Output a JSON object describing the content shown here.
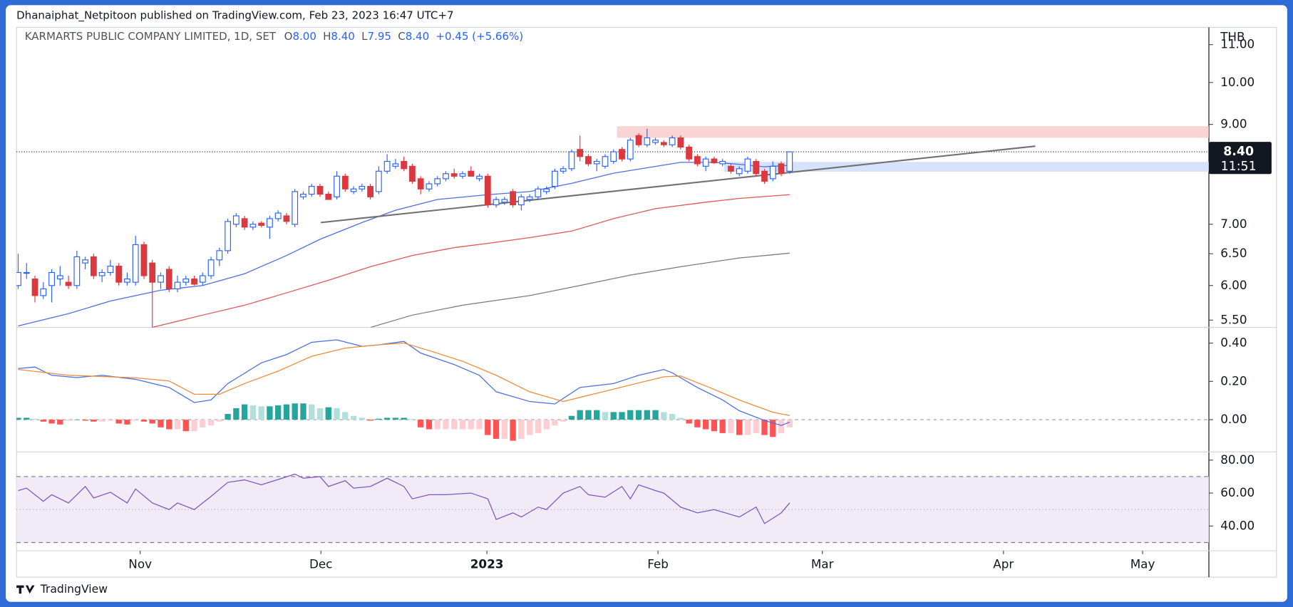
{
  "header": {
    "published": "Dhanaiphat_Netpitoon published on TradingView.com, Feb 23, 2023 16:47 UTC+7",
    "brand": "TradingView"
  },
  "legend": {
    "symbol": "KARMARTS PUBLIC COMPANY LIMITED, 1D, SET",
    "ohlc": [
      [
        "O",
        "8.00"
      ],
      [
        "H",
        "8.40"
      ],
      [
        "L",
        "7.95"
      ],
      [
        "C",
        "8.40"
      ]
    ],
    "change": "+0.45 (+5.66%)"
  },
  "chart_data": [
    {
      "type": "candlestick",
      "currency": "THB",
      "log": true,
      "up_color": "#2962ff",
      "down_color": "#d9393f",
      "xlim": [
        -0.2,
        142.0
      ],
      "xticks": [
        {
          "value": 14.55,
          "label": "Nov"
        },
        {
          "value": 36.1,
          "label": "Dec"
        },
        {
          "value": 55.9,
          "label": "2023"
        },
        {
          "value": 76.3,
          "label": "Feb"
        },
        {
          "value": 95.9,
          "label": "Mar"
        },
        {
          "value": 117.5,
          "label": "Apr"
        },
        {
          "value": 134.1,
          "label": "May"
        }
      ],
      "ylim": [
        5.4,
        11.44
      ],
      "yticks": [
        {
          "value": 5.5,
          "label": "5.50"
        },
        {
          "value": 6,
          "label": "6.00"
        },
        {
          "value": 6.5,
          "label": "6.50"
        },
        {
          "value": 7,
          "label": "7.00"
        },
        {
          "value": 9,
          "label": "9.00"
        },
        {
          "value": 10,
          "label": "10.00"
        },
        {
          "value": 11,
          "label": "11.00"
        }
      ],
      "last": {
        "value": 8.4,
        "label": "8.40",
        "countdown": "11:51"
      },
      "ohlc": [
        [
          6.0,
          6.5,
          5.95,
          6.2
        ],
        [
          6.2,
          6.35,
          6.1,
          6.2
        ],
        [
          6.1,
          6.15,
          5.75,
          5.85
        ],
        [
          5.85,
          6.05,
          5.8,
          5.95
        ],
        [
          6.0,
          6.25,
          5.75,
          6.2
        ],
        [
          6.1,
          6.3,
          6.0,
          6.15
        ],
        [
          6.05,
          6.15,
          5.95,
          6.0
        ],
        [
          6.0,
          6.55,
          5.95,
          6.45
        ],
        [
          6.35,
          6.45,
          6.25,
          6.4
        ],
        [
          6.45,
          6.5,
          6.1,
          6.15
        ],
        [
          6.15,
          6.25,
          6.05,
          6.2
        ],
        [
          6.2,
          6.4,
          6.15,
          6.3
        ],
        [
          6.3,
          6.35,
          6.0,
          6.05
        ],
        [
          6.05,
          6.2,
          6.0,
          6.1
        ],
        [
          6.05,
          6.8,
          6.0,
          6.65
        ],
        [
          6.65,
          6.7,
          6.1,
          6.15
        ],
        [
          6.35,
          6.4,
          5.4,
          6.05
        ],
        [
          6.05,
          6.2,
          5.95,
          6.15
        ],
        [
          6.25,
          6.3,
          5.9,
          5.95
        ],
        [
          5.95,
          6.15,
          5.9,
          6.05
        ],
        [
          6.05,
          6.15,
          6.0,
          6.1
        ],
        [
          6.1,
          6.15,
          6.0,
          6.02
        ],
        [
          6.05,
          6.2,
          6.0,
          6.15
        ],
        [
          6.15,
          6.45,
          6.1,
          6.4
        ],
        [
          6.4,
          6.6,
          6.3,
          6.55
        ],
        [
          6.55,
          7.1,
          6.5,
          7.05
        ],
        [
          7.0,
          7.2,
          6.95,
          7.15
        ],
        [
          7.1,
          7.15,
          6.9,
          6.95
        ],
        [
          6.95,
          7.05,
          6.9,
          7.0
        ],
        [
          7.02,
          7.05,
          6.95,
          6.98
        ],
        [
          6.95,
          7.15,
          6.75,
          7.1
        ],
        [
          7.1,
          7.25,
          7.05,
          7.2
        ],
        [
          7.15,
          7.2,
          7.0,
          7.05
        ],
        [
          7.0,
          7.65,
          6.95,
          7.6
        ],
        [
          7.5,
          7.6,
          7.45,
          7.55
        ],
        [
          7.55,
          7.75,
          7.5,
          7.7
        ],
        [
          7.7,
          7.75,
          7.5,
          7.55
        ],
        [
          7.55,
          7.6,
          7.45,
          7.45
        ],
        [
          7.5,
          8.0,
          7.45,
          7.9
        ],
        [
          7.9,
          7.95,
          7.6,
          7.65
        ],
        [
          7.6,
          7.7,
          7.55,
          7.65
        ],
        [
          7.65,
          7.75,
          7.6,
          7.7
        ],
        [
          7.7,
          7.75,
          7.45,
          7.5
        ],
        [
          7.6,
          8.1,
          7.55,
          8.0
        ],
        [
          8.0,
          8.35,
          7.95,
          8.2
        ],
        [
          8.1,
          8.25,
          8.05,
          8.15
        ],
        [
          8.2,
          8.3,
          8.0,
          8.05
        ],
        [
          8.1,
          8.15,
          7.75,
          7.8
        ],
        [
          7.85,
          7.9,
          7.55,
          7.65
        ],
        [
          7.65,
          7.8,
          7.6,
          7.75
        ],
        [
          7.75,
          7.9,
          7.7,
          7.85
        ],
        [
          7.85,
          8.0,
          7.8,
          7.95
        ],
        [
          7.95,
          8.05,
          7.85,
          7.9
        ],
        [
          7.9,
          8.0,
          7.85,
          7.95
        ],
        [
          8.0,
          8.1,
          7.9,
          7.9
        ],
        [
          7.85,
          7.95,
          7.8,
          7.9
        ],
        [
          7.9,
          7.95,
          7.3,
          7.35
        ],
        [
          7.35,
          7.5,
          7.3,
          7.45
        ],
        [
          7.4,
          7.5,
          7.35,
          7.45
        ],
        [
          7.6,
          7.65,
          7.3,
          7.35
        ],
        [
          7.35,
          7.55,
          7.25,
          7.5
        ],
        [
          7.45,
          7.55,
          7.4,
          7.5
        ],
        [
          7.5,
          7.7,
          7.45,
          7.65
        ],
        [
          7.6,
          7.7,
          7.55,
          7.65
        ],
        [
          7.7,
          8.05,
          7.65,
          8.0
        ],
        [
          8.0,
          8.1,
          7.95,
          8.05
        ],
        [
          8.05,
          8.45,
          8.0,
          8.4
        ],
        [
          8.45,
          8.75,
          8.2,
          8.3
        ],
        [
          8.3,
          8.35,
          8.1,
          8.15
        ],
        [
          8.15,
          8.25,
          8.0,
          8.2
        ],
        [
          8.1,
          8.35,
          8.05,
          8.3
        ],
        [
          8.2,
          8.45,
          8.15,
          8.4
        ],
        [
          8.45,
          8.5,
          8.2,
          8.25
        ],
        [
          8.25,
          8.7,
          8.2,
          8.65
        ],
        [
          8.75,
          8.8,
          8.5,
          8.55
        ],
        [
          8.55,
          8.9,
          8.5,
          8.7
        ],
        [
          8.6,
          8.7,
          8.55,
          8.65
        ],
        [
          8.6,
          8.65,
          8.5,
          8.55
        ],
        [
          8.55,
          8.75,
          8.5,
          8.7
        ],
        [
          8.7,
          8.75,
          8.45,
          8.5
        ],
        [
          8.5,
          8.55,
          8.2,
          8.25
        ],
        [
          8.3,
          8.35,
          8.1,
          8.15
        ],
        [
          8.1,
          8.3,
          8.0,
          8.25
        ],
        [
          8.25,
          8.3,
          8.15,
          8.17
        ],
        [
          8.15,
          8.25,
          8.1,
          8.2
        ],
        [
          8.1,
          8.15,
          7.95,
          8.0
        ],
        [
          7.95,
          8.1,
          7.9,
          8.05
        ],
        [
          8.0,
          8.3,
          7.95,
          8.25
        ],
        [
          8.2,
          8.25,
          7.9,
          7.95
        ],
        [
          8.0,
          8.05,
          7.75,
          7.8
        ],
        [
          7.85,
          8.2,
          7.8,
          8.1
        ],
        [
          8.15,
          8.2,
          7.9,
          7.95
        ],
        [
          8.0,
          8.4,
          7.95,
          8.4
        ]
      ],
      "lines": [
        {
          "color": "#4a6fe3",
          "x": [
            0,
            6,
            11,
            17,
            22,
            27,
            32,
            36,
            41,
            45,
            50,
            56,
            61,
            66,
            71,
            75,
            79,
            83,
            86,
            89,
            92
          ],
          "values": [
            5.42,
            5.59,
            5.77,
            5.93,
            6.0,
            6.18,
            6.47,
            6.74,
            7.03,
            7.25,
            7.45,
            7.54,
            7.6,
            7.76,
            7.96,
            8.07,
            8.18,
            8.18,
            8.14,
            8.09,
            8.12
          ]
        },
        {
          "color": "#e05656",
          "x": [
            16,
            22,
            27,
            32,
            37,
            42,
            47,
            52,
            56,
            61,
            66,
            71,
            76,
            82,
            86,
            92
          ],
          "values": [
            5.4,
            5.57,
            5.71,
            5.89,
            6.08,
            6.29,
            6.47,
            6.6,
            6.67,
            6.77,
            6.88,
            7.1,
            7.28,
            7.4,
            7.47,
            7.54
          ]
        },
        {
          "color": "#7a7a7a",
          "x": [
            42,
            47,
            53,
            61,
            67,
            73,
            79,
            86,
            92
          ],
          "values": [
            5.4,
            5.57,
            5.71,
            5.85,
            6.0,
            6.16,
            6.29,
            6.43,
            6.51
          ]
        }
      ],
      "trendline": {
        "color": "#707070",
        "x": [
          36.1,
          121.3
        ],
        "values": [
          7.03,
          8.52
        ]
      },
      "zones": [
        {
          "color": "#f5c6c6",
          "x": [
            71.4,
            142.0
          ],
          "values": [
            8.7,
            8.96
          ]
        },
        {
          "color": "#c9d8fb",
          "x": [
            84.2,
            142.0
          ],
          "values": [
            7.99,
            8.19
          ]
        }
      ]
    },
    {
      "type": "macd",
      "ylim": [
        -0.168,
        0.482
      ],
      "yticks": [
        {
          "value": 0,
          "label": "0.00"
        },
        {
          "value": 0.2,
          "label": "0.20"
        },
        {
          "value": 0.4,
          "label": "0.40"
        }
      ],
      "histogram_colors": [
        "#26a69a",
        "#b2dfdb",
        "#ff5252",
        "#ffcdd2"
      ],
      "histogram": [
        0.01,
        0.01,
        0.005,
        -0.01,
        -0.02,
        -0.025,
        -0.005,
        0,
        -0.005,
        -0.01,
        -0.01,
        -0.005,
        -0.02,
        -0.025,
        -0.005,
        -0.01,
        -0.02,
        -0.04,
        -0.05,
        -0.05,
        -0.06,
        -0.06,
        -0.04,
        -0.03,
        -0.01,
        0.03,
        0.06,
        0.08,
        0.075,
        0.07,
        0.07,
        0.075,
        0.08,
        0.085,
        0.085,
        0.08,
        0.06,
        0.065,
        0.06,
        0.04,
        0.02,
        0.01,
        -0.005,
        0.005,
        0.01,
        0.01,
        0.01,
        0.003,
        -0.04,
        -0.05,
        -0.05,
        -0.05,
        -0.05,
        -0.05,
        -0.05,
        -0.05,
        -0.08,
        -0.1,
        -0.1,
        -0.11,
        -0.1,
        -0.08,
        -0.07,
        -0.05,
        -0.03,
        -0.01,
        0.02,
        0.05,
        0.05,
        0.05,
        0.04,
        0.04,
        0.04,
        0.05,
        0.05,
        0.05,
        0.05,
        0.04,
        0.03,
        0.01,
        -0.02,
        -0.04,
        -0.05,
        -0.06,
        -0.07,
        -0.07,
        -0.08,
        -0.08,
        -0.07,
        -0.08,
        -0.09,
        -0.07,
        -0.04
      ],
      "lines": [
        {
          "color": "#4a6fe3",
          "x": [
            0,
            2,
            4,
            7,
            10,
            14,
            18,
            21,
            23,
            25,
            29,
            32,
            35,
            38,
            41,
            43,
            46,
            48,
            52,
            55,
            57,
            61,
            64,
            67,
            71,
            74,
            77,
            78,
            81,
            84,
            86,
            89,
            91,
            92
          ],
          "values": [
            0.267,
            0.275,
            0.232,
            0.22,
            0.232,
            0.211,
            0.168,
            0.09,
            0.103,
            0.189,
            0.297,
            0.34,
            0.404,
            0.417,
            0.383,
            0.391,
            0.409,
            0.348,
            0.288,
            0.232,
            0.146,
            0.095,
            0.082,
            0.168,
            0.189,
            0.232,
            0.262,
            0.245,
            0.168,
            0.103,
            0.047,
            -0.004,
            -0.03,
            -0.013
          ]
        },
        {
          "color": "#f08a3c",
          "x": [
            0,
            6,
            14,
            18,
            21,
            24,
            27,
            31,
            35,
            39,
            43,
            46,
            49,
            53,
            57,
            61,
            65,
            69,
            73,
            77,
            79,
            82,
            86,
            90,
            92
          ],
          "values": [
            0.262,
            0.232,
            0.219,
            0.202,
            0.133,
            0.133,
            0.189,
            0.254,
            0.331,
            0.374,
            0.391,
            0.4,
            0.361,
            0.305,
            0.232,
            0.146,
            0.095,
            0.138,
            0.181,
            0.224,
            0.228,
            0.176,
            0.103,
            0.039,
            0.022
          ]
        }
      ]
    },
    {
      "type": "rsi",
      "ylim": [
        25,
        85
      ],
      "yticks": [
        {
          "value": 40,
          "label": "40.00"
        },
        {
          "value": 60,
          "label": "60.00"
        },
        {
          "value": 80,
          "label": "80.00"
        }
      ],
      "levels": [
        30,
        50,
        70
      ],
      "band_color": "#ede7f6",
      "line": {
        "color": "#7e57c2",
        "x": [
          0,
          1,
          3,
          4,
          6,
          8,
          9,
          11,
          13,
          14,
          16,
          18,
          19,
          21,
          23,
          25,
          27,
          29,
          33,
          34,
          36,
          37,
          39,
          40,
          42,
          44,
          46,
          47,
          49,
          51,
          54,
          56,
          57,
          59,
          60,
          62,
          63,
          65,
          67,
          68,
          70,
          72,
          73,
          74,
          76,
          77,
          79,
          81,
          83,
          86,
          88,
          89,
          91,
          92
        ],
        "values": [
          61.5,
          63,
          55,
          59,
          54,
          64,
          57,
          60.5,
          54,
          62.5,
          54,
          50,
          54,
          50,
          58,
          66.5,
          68,
          65,
          71.5,
          69,
          70,
          64,
          67.5,
          63,
          64,
          69,
          64,
          56.5,
          59,
          59,
          60,
          56.5,
          44,
          48,
          45.5,
          51.5,
          50,
          60,
          64,
          59,
          57.5,
          64,
          56.5,
          65,
          61.5,
          60,
          51.5,
          48,
          50,
          45.5,
          51.5,
          41.5,
          48,
          54
        ]
      }
    }
  ]
}
